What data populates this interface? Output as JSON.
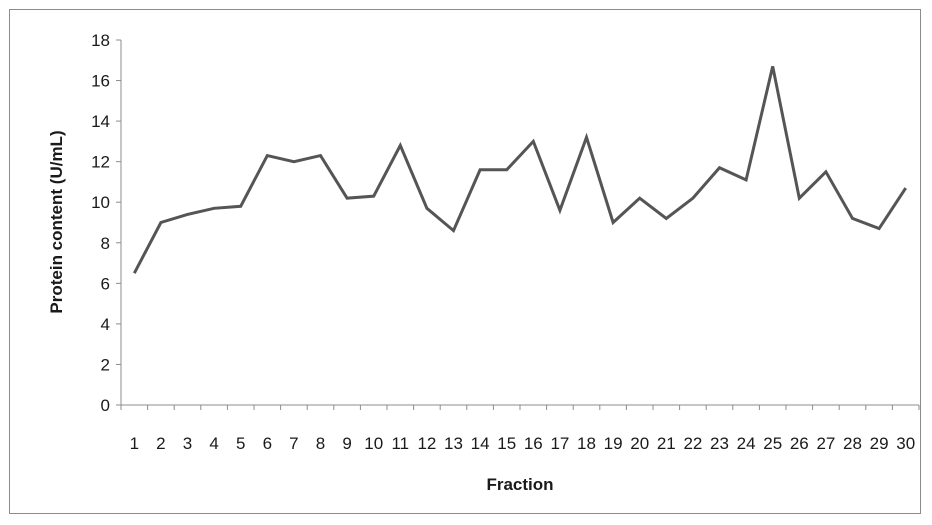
{
  "chart_data": {
    "type": "line",
    "title": "",
    "xlabel": "Fraction",
    "ylabel": "Protein content  (U/mL)",
    "categories": [
      "1",
      "2",
      "3",
      "4",
      "5",
      "6",
      "7",
      "8",
      "9",
      "10",
      "11",
      "12",
      "13",
      "14",
      "15",
      "16",
      "17",
      "18",
      "19",
      "20",
      "21",
      "22",
      "23",
      "24",
      "25",
      "26",
      "27",
      "28",
      "29",
      "30"
    ],
    "series": [
      {
        "name": "",
        "values": [
          6.5,
          9.0,
          9.4,
          9.7,
          9.8,
          12.3,
          12.0,
          12.3,
          10.2,
          10.3,
          12.8,
          9.7,
          8.6,
          11.6,
          11.6,
          13.0,
          9.6,
          13.2,
          9.0,
          10.2,
          9.2,
          10.2,
          11.7,
          11.1,
          16.7,
          10.2,
          11.5,
          9.2,
          8.7,
          10.7
        ],
        "color": "#555555"
      }
    ],
    "yticks": [
      0,
      2,
      4,
      6,
      8,
      10,
      12,
      14,
      16,
      18
    ],
    "ylim": [
      0,
      18
    ],
    "grid": false,
    "legend": "none"
  }
}
